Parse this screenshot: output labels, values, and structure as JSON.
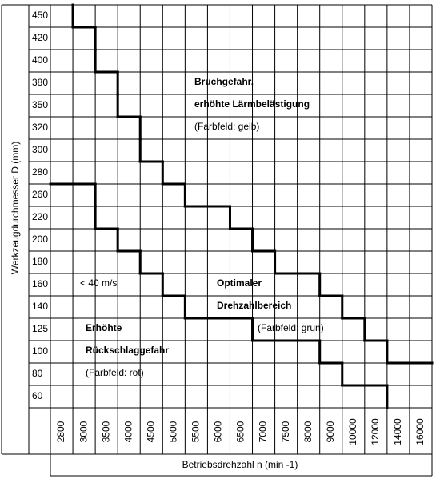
{
  "chart_data": {
    "type": "step",
    "y_label": "Werkzeugdurchmesser D (mm)",
    "x_label": "Betriebsdrehzahl n (min -1)",
    "rows": [
      450,
      420,
      400,
      380,
      350,
      320,
      300,
      280,
      260,
      220,
      200,
      180,
      160,
      140,
      125,
      100,
      80,
      60
    ],
    "columns": [
      2800,
      3000,
      3500,
      4000,
      4500,
      5000,
      5500,
      6000,
      6500,
      7000,
      7500,
      8000,
      9000,
      10000,
      12000,
      14000,
      16000
    ],
    "series": [
      {
        "values": [
          2800,
          3000,
          3000,
          3500,
          3500,
          4000,
          4000,
          4500,
          5000,
          6000,
          6500,
          7000,
          8000,
          9000,
          10000,
          12000,
          null,
          null
        ]
      },
      {
        "values": [
          null,
          null,
          null,
          null,
          null,
          null,
          null,
          null,
          3000,
          3000,
          3500,
          4000,
          4500,
          5000,
          6500,
          8000,
          9000,
          12000
        ]
      }
    ],
    "color": "#000000",
    "grid": true,
    "annotations": [
      "Bruchgefahr,",
      "erhöhte Lärmbelästigung",
      "(Farbfeld: gelb)",
      "< 40 m/s",
      "Optimaler",
      "Drehzahlbereich",
      "(Farbfeld: grun)",
      "Erhöhte",
      "Rückschlaggefahr",
      "(Farbfeld: rot)"
    ]
  }
}
